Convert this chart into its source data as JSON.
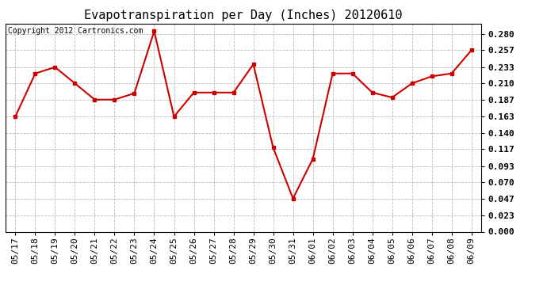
{
  "title": "Evapotranspiration per Day (Inches) 20120610",
  "copyright": "Copyright 2012 Cartronics.com",
  "x_labels": [
    "05/17",
    "05/18",
    "05/19",
    "05/20",
    "05/21",
    "05/22",
    "05/23",
    "05/24",
    "05/25",
    "05/26",
    "05/27",
    "05/28",
    "05/29",
    "05/30",
    "05/31",
    "06/01",
    "06/02",
    "06/03",
    "06/04",
    "06/05",
    "06/06",
    "06/07",
    "06/08",
    "06/09"
  ],
  "y_values": [
    0.163,
    0.224,
    0.233,
    0.21,
    0.187,
    0.187,
    0.196,
    0.284,
    0.163,
    0.197,
    0.197,
    0.197,
    0.237,
    0.119,
    0.047,
    0.103,
    0.224,
    0.224,
    0.197,
    0.19,
    0.21,
    0.22,
    0.224,
    0.257
  ],
  "line_color": "#cc0000",
  "marker_color": "#cc0000",
  "background_color": "#ffffff",
  "plot_bg_color": "#ffffff",
  "grid_color": "#bbbbbb",
  "y_min": 0.0,
  "y_max": 0.2944,
  "y_tick_values": [
    0.0,
    0.023,
    0.047,
    0.07,
    0.093,
    0.117,
    0.14,
    0.163,
    0.187,
    0.21,
    0.233,
    0.257,
    0.28
  ],
  "title_fontsize": 11,
  "tick_fontsize": 8,
  "copyright_fontsize": 7
}
